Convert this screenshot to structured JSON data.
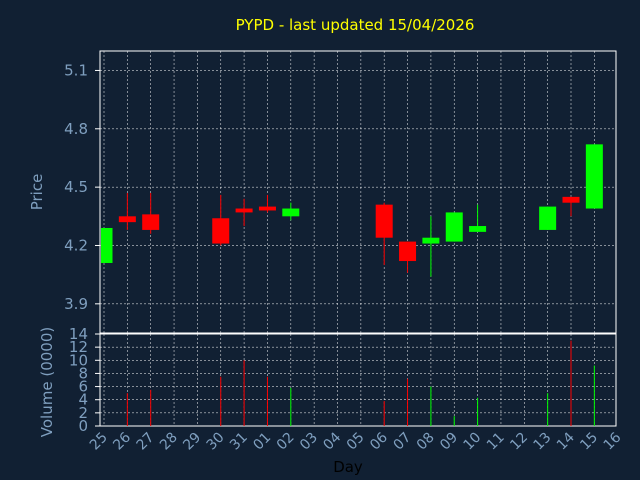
{
  "colors": {
    "background": "#112033",
    "axis": "#ffffff",
    "grid": "#ffffff",
    "title": "#ffff00",
    "label": "#7f9fbf",
    "up": "#00ff00",
    "down": "#ff0000"
  },
  "chart_data": [
    {
      "type": "candlestick",
      "title": "PYPD - last updated 15/04/2026",
      "ylabel": "Price",
      "ylim": [
        3.75,
        5.2
      ],
      "yticks": [
        "3.9",
        "4.2",
        "4.5",
        "4.8",
        "5.1"
      ],
      "grid": true,
      "days": [
        "25",
        "26",
        "27",
        "28",
        "29",
        "30",
        "31",
        "01",
        "02",
        "03",
        "04",
        "05",
        "06",
        "07",
        "08",
        "09",
        "10",
        "11",
        "12",
        "13",
        "14",
        "15",
        "16"
      ],
      "candles": [
        {
          "day": "25",
          "open": 4.11,
          "close": 4.29,
          "high": 4.29,
          "low": 4.11
        },
        {
          "day": "26",
          "open": 4.35,
          "close": 4.32,
          "high": 4.47,
          "low": 4.28
        },
        {
          "day": "27",
          "open": 4.36,
          "close": 4.28,
          "high": 4.47,
          "low": 4.26
        },
        {
          "day": "30",
          "open": 4.34,
          "close": 4.21,
          "high": 4.46,
          "low": 4.2
        },
        {
          "day": "31",
          "open": 4.39,
          "close": 4.37,
          "high": 4.44,
          "low": 4.3
        },
        {
          "day": "01",
          "open": 4.4,
          "close": 4.38,
          "high": 4.46,
          "low": 4.37
        },
        {
          "day": "02",
          "open": 4.35,
          "close": 4.39,
          "high": 4.42,
          "low": 4.33
        },
        {
          "day": "06",
          "open": 4.41,
          "close": 4.24,
          "high": 4.42,
          "low": 4.1
        },
        {
          "day": "07",
          "open": 4.22,
          "close": 4.12,
          "high": 4.22,
          "low": 4.06
        },
        {
          "day": "08",
          "open": 4.21,
          "close": 4.24,
          "high": 4.35,
          "low": 4.04
        },
        {
          "day": "09",
          "open": 4.22,
          "close": 4.37,
          "high": 4.37,
          "low": 4.22
        },
        {
          "day": "10",
          "open": 4.27,
          "close": 4.3,
          "high": 4.41,
          "low": 4.27
        },
        {
          "day": "13",
          "open": 4.28,
          "close": 4.4,
          "high": 4.4,
          "low": 4.28
        },
        {
          "day": "14",
          "open": 4.45,
          "close": 4.42,
          "high": 4.45,
          "low": 4.35
        },
        {
          "day": "15",
          "open": 4.39,
          "close": 4.72,
          "high": 4.72,
          "low": 4.39
        }
      ]
    },
    {
      "type": "bar",
      "xlabel": "Day",
      "ylabel": "Volume (0000)",
      "ylim": [
        0,
        14
      ],
      "yticks": [
        "0",
        "2",
        "4",
        "6",
        "8",
        "10",
        "12",
        "14"
      ],
      "grid": true,
      "volumes": [
        {
          "day": "26",
          "value": 5,
          "direction": "down"
        },
        {
          "day": "27",
          "value": 5.5,
          "direction": "down"
        },
        {
          "day": "30",
          "value": 7.5,
          "direction": "down"
        },
        {
          "day": "31",
          "value": 10,
          "direction": "down"
        },
        {
          "day": "01",
          "value": 7.5,
          "direction": "down"
        },
        {
          "day": "02",
          "value": 5.8,
          "direction": "up"
        },
        {
          "day": "06",
          "value": 3.8,
          "direction": "down"
        },
        {
          "day": "07",
          "value": 7.2,
          "direction": "down"
        },
        {
          "day": "08",
          "value": 6,
          "direction": "up"
        },
        {
          "day": "09",
          "value": 1.5,
          "direction": "up"
        },
        {
          "day": "10",
          "value": 4.3,
          "direction": "up"
        },
        {
          "day": "13",
          "value": 5,
          "direction": "up"
        },
        {
          "day": "14",
          "value": 13,
          "direction": "down"
        },
        {
          "day": "15",
          "value": 9.2,
          "direction": "up"
        }
      ]
    }
  ]
}
